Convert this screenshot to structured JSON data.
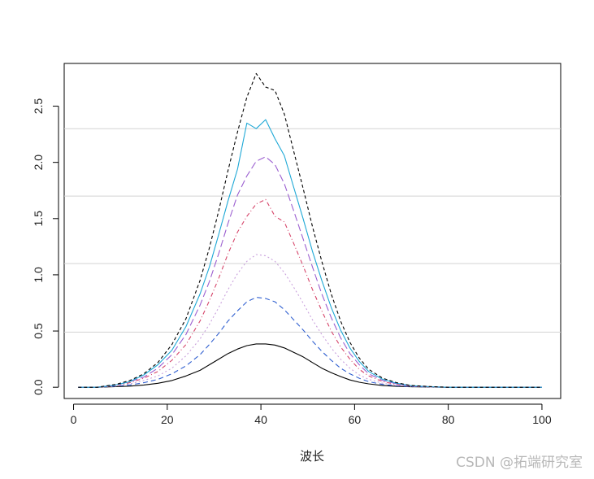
{
  "chart_data": {
    "type": "line",
    "title": "",
    "xlabel": "波长",
    "ylabel": "",
    "xlim": [
      -2,
      104
    ],
    "ylim": [
      -0.1,
      2.88
    ],
    "xticks": [
      0,
      20,
      40,
      60,
      80,
      100
    ],
    "yticks": [
      0.0,
      0.5,
      1.0,
      1.5,
      2.0,
      2.5
    ],
    "xtick_labels": [
      "0",
      "20",
      "40",
      "60",
      "80",
      "100"
    ],
    "ytick_labels": [
      "0.0",
      "0.5",
      "1.0",
      "1.5",
      "2.0",
      "2.5"
    ],
    "reference_lines": [
      0.49,
      1.1,
      1.7,
      2.3
    ],
    "reference_color": "#d3d3d3",
    "grid": false,
    "x": [
      1,
      5,
      9,
      12,
      15,
      18,
      21,
      24,
      27,
      29,
      31,
      33,
      35,
      37,
      39,
      41,
      43,
      45,
      47,
      49,
      51,
      53,
      55,
      57,
      59,
      61,
      63,
      66,
      69,
      72,
      76,
      80,
      90,
      100
    ],
    "series": [
      {
        "color": "#000000",
        "dash": "none",
        "values": [
          0,
          0,
          0.005,
          0.01,
          0.02,
          0.035,
          0.06,
          0.1,
          0.15,
          0.2,
          0.25,
          0.3,
          0.34,
          0.37,
          0.385,
          0.385,
          0.375,
          0.35,
          0.31,
          0.27,
          0.22,
          0.17,
          0.13,
          0.095,
          0.065,
          0.045,
          0.03,
          0.015,
          0.008,
          0.004,
          0.002,
          0,
          0,
          0
        ]
      },
      {
        "color": "#2f5fd0",
        "dash": "6,4",
        "values": [
          0,
          0,
          0.01,
          0.02,
          0.04,
          0.07,
          0.12,
          0.19,
          0.29,
          0.38,
          0.48,
          0.59,
          0.68,
          0.76,
          0.8,
          0.79,
          0.76,
          0.69,
          0.6,
          0.51,
          0.41,
          0.32,
          0.24,
          0.17,
          0.12,
          0.08,
          0.05,
          0.025,
          0.013,
          0.006,
          0.003,
          0,
          0,
          0
        ]
      },
      {
        "color": "#c9a0dc",
        "dash": "2,3",
        "values": [
          0,
          0,
          0.01,
          0.03,
          0.06,
          0.1,
          0.17,
          0.28,
          0.43,
          0.56,
          0.71,
          0.87,
          1.01,
          1.12,
          1.18,
          1.17,
          1.12,
          1.02,
          0.89,
          0.75,
          0.6,
          0.47,
          0.35,
          0.25,
          0.17,
          0.11,
          0.07,
          0.035,
          0.018,
          0.008,
          0.003,
          0,
          0,
          0
        ]
      },
      {
        "color": "#d6456a",
        "dash": "5,3,1,3",
        "values": [
          0,
          0,
          0.015,
          0.04,
          0.08,
          0.14,
          0.24,
          0.38,
          0.59,
          0.77,
          0.97,
          1.19,
          1.38,
          1.52,
          1.63,
          1.67,
          1.52,
          1.47,
          1.28,
          1.08,
          0.87,
          0.68,
          0.5,
          0.36,
          0.25,
          0.16,
          0.1,
          0.05,
          0.025,
          0.01,
          0.004,
          0,
          0,
          0
        ]
      },
      {
        "color": "#9b5fd0",
        "dash": "9,4",
        "values": [
          0,
          0,
          0.02,
          0.05,
          0.09,
          0.17,
          0.29,
          0.47,
          0.73,
          0.94,
          1.19,
          1.46,
          1.71,
          1.88,
          2.01,
          2.05,
          1.98,
          1.81,
          1.57,
          1.32,
          1.07,
          0.83,
          0.62,
          0.44,
          0.3,
          0.2,
          0.12,
          0.06,
          0.03,
          0.012,
          0.005,
          0,
          0,
          0
        ]
      },
      {
        "color": "#1ea8d6",
        "dash": "none",
        "values": [
          0,
          0,
          0.02,
          0.05,
          0.11,
          0.2,
          0.33,
          0.54,
          0.83,
          1.07,
          1.36,
          1.66,
          1.94,
          2.35,
          2.3,
          2.38,
          2.21,
          2.06,
          1.78,
          1.5,
          1.21,
          0.95,
          0.71,
          0.51,
          0.35,
          0.23,
          0.14,
          0.07,
          0.035,
          0.014,
          0.005,
          0,
          0,
          0
        ]
      },
      {
        "color": "#000000",
        "dash": "4,3",
        "values": [
          0,
          0,
          0.025,
          0.06,
          0.12,
          0.22,
          0.38,
          0.61,
          0.95,
          1.24,
          1.57,
          1.93,
          2.27,
          2.58,
          2.79,
          2.67,
          2.64,
          2.43,
          2.1,
          1.77,
          1.43,
          1.12,
          0.83,
          0.59,
          0.4,
          0.26,
          0.16,
          0.08,
          0.04,
          0.016,
          0.006,
          0,
          0,
          0
        ]
      }
    ]
  },
  "watermark": "CSDN @拓端研究室"
}
